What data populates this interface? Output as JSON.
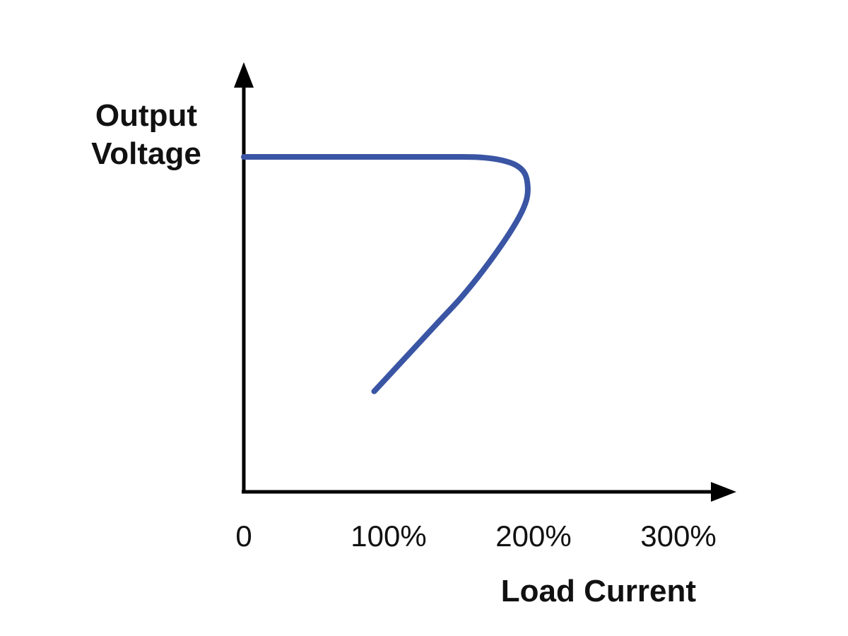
{
  "chart_data": {
    "type": "line",
    "title": "",
    "ylabel_lines": [
      "Output",
      "Voltage"
    ],
    "xlabel": "Load Current",
    "x_tick_labels": [
      "0",
      "100%",
      "200%",
      "300%"
    ],
    "x_ticks": [
      0,
      100,
      200,
      300
    ],
    "xlim": [
      0,
      340
    ],
    "ylim": [
      0,
      100
    ],
    "y_ticks_shown": false,
    "grid": false,
    "legend": "none",
    "series": [
      {
        "color": "#3a55a4",
        "x": [
          0,
          50,
          100,
          150,
          165,
          178,
          188,
          194,
          196,
          195,
          190,
          180,
          165,
          150,
          135,
          120,
          105,
          90
        ],
        "y": [
          100,
          100,
          100,
          100,
          99.8,
          99,
          97.5,
          95,
          91,
          87,
          82,
          75,
          66,
          58,
          51,
          44,
          37,
          30
        ]
      }
    ]
  }
}
